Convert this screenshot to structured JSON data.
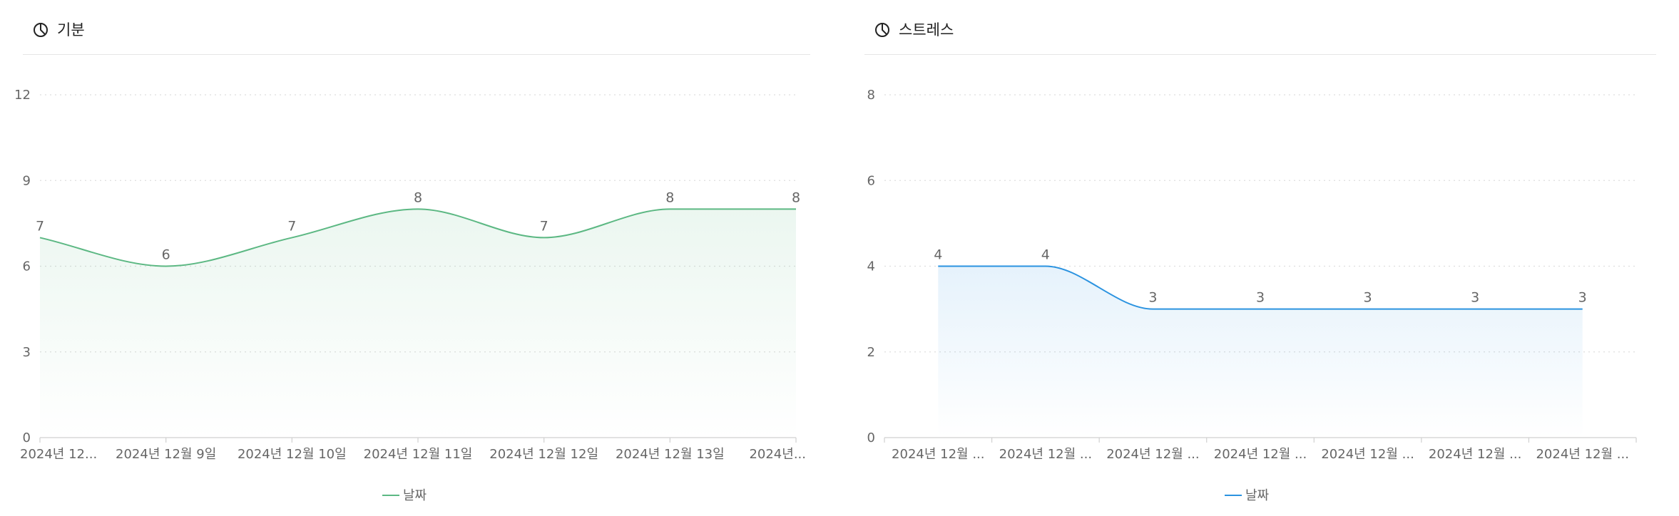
{
  "charts": [
    {
      "id": "mood",
      "panel_title": "기분",
      "icon": "pie-chart-icon",
      "color": "#5cb883",
      "chart_data": {
        "type": "area",
        "categories": [
          "2024년 12...",
          "2024년 12월 9일",
          "2024년 12월 10일",
          "2024년 12월 11일",
          "2024년 12월 12일",
          "2024년 12월 13일",
          "2024년..."
        ],
        "series": [
          {
            "name": "날짜",
            "values": [
              7,
              6,
              7,
              8,
              7,
              8,
              8
            ]
          }
        ],
        "yticks": [
          0,
          3,
          6,
          9,
          12
        ],
        "ylim": [
          0,
          12
        ],
        "grid": "horizontal dotted",
        "legend": "bottom-center",
        "data_labels": true
      }
    },
    {
      "id": "stress",
      "panel_title": "스트레스",
      "icon": "pie-chart-icon",
      "color": "#2b93e0",
      "chart_data": {
        "type": "area",
        "categories": [
          "2024년 12월 ...",
          "2024년 12월 ...",
          "2024년 12월 ...",
          "2024년 12월 ...",
          "2024년 12월 ...",
          "2024년 12월 ...",
          "2024년 12월 ..."
        ],
        "series": [
          {
            "name": "날짜",
            "values": [
              4,
              4,
              3,
              3,
              3,
              3,
              3
            ]
          }
        ],
        "yticks": [
          0,
          2,
          4,
          6,
          8
        ],
        "ylim": [
          0,
          8
        ],
        "grid": "horizontal dotted",
        "legend": "bottom-center",
        "data_labels": true
      }
    }
  ]
}
